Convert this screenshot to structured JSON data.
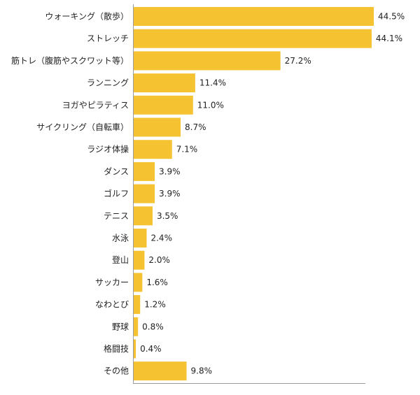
{
  "chart_data": {
    "type": "bar",
    "orientation": "horizontal",
    "title": "",
    "xlabel": "",
    "ylabel": "",
    "categories": [
      "ウォーキング（散歩）",
      "ストレッチ",
      "筋トレ（腹筋やスクワット等）",
      "ランニング",
      "ヨガやピラティス",
      "サイクリング（自転車）",
      "ラジオ体操",
      "ダンス",
      "ゴルフ",
      "テニス",
      "水泳",
      "登山",
      "サッカー",
      "なわとび",
      "野球",
      "格闘技",
      "その他"
    ],
    "values": [
      44.5,
      44.1,
      27.2,
      11.4,
      11.0,
      8.7,
      7.1,
      3.9,
      3.9,
      3.5,
      2.4,
      2.0,
      1.6,
      1.2,
      0.8,
      0.4,
      9.8
    ],
    "value_labels": [
      "44.5%",
      "44.1%",
      "27.2%",
      "11.4%",
      "11.0%",
      "8.7%",
      "7.1%",
      "3.9%",
      "3.9%",
      "3.5%",
      "2.4%",
      "2.0%",
      "1.6%",
      "1.2%",
      "0.8%",
      "0.4%",
      "9.8%"
    ],
    "xlim": [
      0,
      44.5
    ],
    "grid": false,
    "legend": "none",
    "bar_color": "#f5c232"
  }
}
